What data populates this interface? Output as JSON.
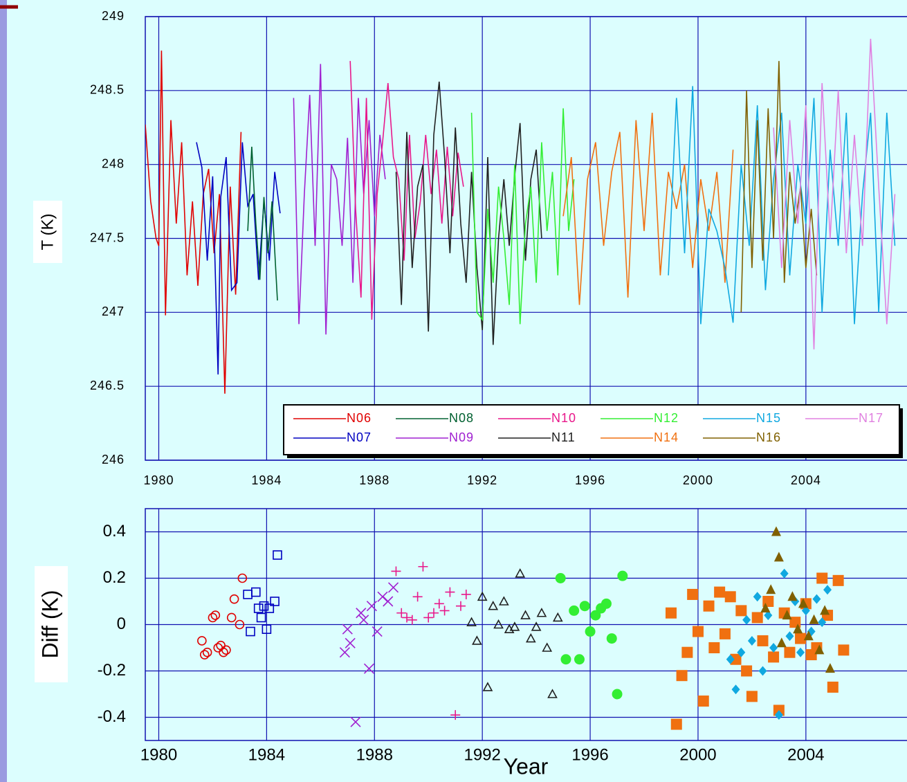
{
  "chart_data": [
    {
      "type": "line",
      "y_label": "T (K)",
      "xlim": [
        1979.5,
        2007.75
      ],
      "xticks": [
        1980,
        1984,
        1988,
        1992,
        1996,
        2000,
        2004
      ],
      "ylim": [
        246,
        249
      ],
      "yticks": [
        246,
        246.5,
        247,
        247.5,
        248,
        248.5,
        249
      ],
      "grid": true,
      "legend": "lower right",
      "series": [
        {
          "name": "N06",
          "color": "#e00000",
          "x": [
            1979.5,
            1979.7,
            1979.9,
            1980.0,
            1980.1,
            1980.25,
            1980.45,
            1980.65,
            1980.85,
            1981.05,
            1981.25,
            1981.45,
            1981.65,
            1981.85,
            1982.05,
            1982.25,
            1982.45,
            1982.65,
            1982.85,
            1983.05
          ],
          "values": [
            248.27,
            247.75,
            247.5,
            247.45,
            248.77,
            246.98,
            248.3,
            247.6,
            248.15,
            247.25,
            247.75,
            247.18,
            247.8,
            247.97,
            247.4,
            247.8,
            246.45,
            247.85,
            247.12,
            248.22
          ]
        },
        {
          "name": "N07",
          "color": "#0000c0",
          "x": [
            1981.4,
            1981.6,
            1981.8,
            1982.0,
            1982.1,
            1982.2,
            1982.3,
            1982.5,
            1982.7,
            1982.9,
            1983.1,
            1983.3,
            1983.5,
            1983.7,
            1983.9,
            1984.1,
            1984.3,
            1984.5
          ],
          "values": [
            248.15,
            247.98,
            247.35,
            247.92,
            247.25,
            246.58,
            247.78,
            248.05,
            247.15,
            247.2,
            248.15,
            247.72,
            247.8,
            247.22,
            247.75,
            247.35,
            247.95,
            247.67
          ]
        },
        {
          "name": "N08",
          "color": "#006030",
          "x": [
            1983.3,
            1983.45,
            1983.6,
            1983.75,
            1983.9,
            1984.05,
            1984.2,
            1984.4
          ],
          "values": [
            247.55,
            248.12,
            247.6,
            247.22,
            247.78,
            247.4,
            247.75,
            247.08
          ]
        },
        {
          "name": "N09",
          "color": "#a020d0",
          "x": [
            1985.0,
            1985.2,
            1985.4,
            1985.6,
            1985.8,
            1986.0,
            1986.2,
            1986.4,
            1986.6,
            1986.8,
            1987.0,
            1987.2,
            1987.4,
            1987.6,
            1987.8,
            1988.0,
            1988.2,
            1988.4
          ],
          "values": [
            248.45,
            246.92,
            247.8,
            248.47,
            247.45,
            248.68,
            246.85,
            248.0,
            247.9,
            247.45,
            248.18,
            247.2,
            248.45,
            247.8,
            248.3,
            247.65,
            248.2,
            247.9
          ]
        },
        {
          "name": "N10",
          "color": "#e8178a",
          "x": [
            1987.1,
            1987.3,
            1987.5,
            1987.7,
            1987.9,
            1988.1,
            1988.3,
            1988.5,
            1988.7,
            1988.9,
            1989.1,
            1989.3,
            1989.5,
            1989.7,
            1989.9,
            1990.1,
            1990.3,
            1990.5,
            1990.7,
            1990.9,
            1991.1,
            1991.3
          ],
          "values": [
            248.7,
            247.7,
            247.1,
            248.45,
            246.95,
            247.8,
            248.15,
            248.55,
            248.05,
            247.9,
            247.35,
            248.2,
            247.5,
            247.75,
            248.2,
            247.8,
            248.1,
            247.6,
            248.12,
            247.65,
            248.08,
            247.85
          ]
        },
        {
          "name": "N11",
          "color": "#202020",
          "x": [
            1988.8,
            1989.0,
            1989.2,
            1989.4,
            1989.6,
            1989.8,
            1990.0,
            1990.2,
            1990.4,
            1990.6,
            1990.8,
            1991.0,
            1991.2,
            1991.4,
            1991.6,
            1991.8,
            1992.0,
            1992.2,
            1992.4,
            1992.6,
            1992.8,
            1993.0,
            1993.2,
            1993.4,
            1993.6,
            1993.8,
            1994.0,
            1994.2
          ],
          "values": [
            247.95,
            247.05,
            248.22,
            247.3,
            247.85,
            248.0,
            246.87,
            248.2,
            248.56,
            248.05,
            247.4,
            248.25,
            247.6,
            247.2,
            247.95,
            247.3,
            246.88,
            248.05,
            246.78,
            247.5,
            247.9,
            247.45,
            247.92,
            248.28,
            247.35,
            247.9,
            248.1,
            247.5
          ]
        },
        {
          "name": "N12",
          "color": "#33ee33",
          "x": [
            1991.6,
            1991.8,
            1992.0,
            1992.2,
            1992.4,
            1992.6,
            1992.8,
            1993.0,
            1993.2,
            1993.4,
            1993.6,
            1993.8,
            1994.0,
            1994.2,
            1994.4,
            1994.6,
            1994.8,
            1995.0,
            1995.2,
            1995.4
          ],
          "values": [
            248.35,
            247.0,
            246.95,
            247.7,
            247.2,
            247.85,
            247.5,
            247.05,
            248.0,
            246.92,
            247.6,
            247.85,
            247.2,
            248.15,
            247.55,
            247.95,
            247.25,
            248.38,
            247.55,
            247.9
          ]
        },
        {
          "name": "N14",
          "color": "#f07010",
          "x": [
            1995.0,
            1995.3,
            1995.6,
            1995.9,
            1996.2,
            1996.5,
            1996.8,
            1997.1,
            1997.4,
            1997.7,
            1998.0,
            1998.3,
            1998.6,
            1998.9,
            1999.2,
            1999.5,
            1999.8,
            2000.1,
            2000.4,
            2000.7,
            2001.0,
            2001.3
          ],
          "values": [
            247.65,
            248.05,
            247.05,
            247.9,
            248.15,
            247.45,
            247.95,
            248.22,
            247.1,
            248.3,
            247.55,
            248.35,
            247.25,
            247.95,
            247.7,
            248.0,
            247.3,
            247.9,
            247.55,
            247.95,
            247.2,
            248.1
          ]
        },
        {
          "name": "N15",
          "color": "#10a8e0",
          "x": [
            1998.9,
            1999.2,
            1999.5,
            1999.8,
            2000.1,
            2000.4,
            2000.7,
            2001.0,
            2001.3,
            2001.6,
            2001.9,
            2002.2,
            2002.5,
            2002.8,
            2003.1,
            2003.4,
            2003.7,
            2004.0,
            2004.3,
            2004.6,
            2004.9,
            2005.2,
            2005.5,
            2005.8,
            2006.1,
            2006.4,
            2006.7,
            2007.0,
            2007.3
          ],
          "values": [
            247.25,
            248.45,
            247.4,
            248.53,
            246.92,
            247.7,
            247.55,
            247.3,
            246.93,
            248.0,
            247.45,
            248.4,
            247.15,
            247.9,
            248.35,
            247.25,
            248.0,
            247.6,
            248.45,
            247.0,
            248.1,
            247.45,
            248.35,
            246.92,
            247.8,
            248.35,
            247.0,
            248.35,
            247.45
          ]
        },
        {
          "name": "N16",
          "color": "#806000",
          "x": [
            2001.6,
            2001.8,
            2002.0,
            2002.2,
            2002.4,
            2002.6,
            2002.8,
            2003.0,
            2003.2,
            2003.4,
            2003.6,
            2003.8,
            2004.0,
            2004.2,
            2004.4
          ],
          "values": [
            247.0,
            248.5,
            247.3,
            248.3,
            247.35,
            248.38,
            247.5,
            248.7,
            247.2,
            247.95,
            247.6,
            247.85,
            247.3,
            247.7,
            247.25
          ]
        },
        {
          "name": "N17",
          "color": "#e080e0",
          "x": [
            2002.8,
            2003.1,
            2003.4,
            2003.7,
            2004.0,
            2004.3,
            2004.6,
            2004.9,
            2005.2,
            2005.5,
            2005.8,
            2006.1,
            2006.4,
            2006.7,
            2007.0,
            2007.3
          ],
          "values": [
            248.25,
            247.3,
            248.3,
            247.6,
            248.4,
            246.75,
            248.55,
            247.5,
            248.5,
            247.4,
            248.2,
            247.45,
            248.85,
            247.85,
            246.92,
            247.8
          ]
        }
      ]
    },
    {
      "type": "scatter",
      "y_label": "Diff (K)",
      "x_label": "Year",
      "xlim": [
        1979.5,
        2007.75
      ],
      "xticks": [
        1980,
        1984,
        1988,
        1992,
        1996,
        2000,
        2004
      ],
      "ylim": [
        -0.5,
        0.5
      ],
      "yticks": [
        -0.4,
        -0.2,
        0,
        0.2,
        0.4
      ],
      "grid": true,
      "series": [
        {
          "color": "#e00000",
          "marker": "circle-open",
          "x": [
            1981.6,
            1981.7,
            1981.8,
            1982.0,
            1982.1,
            1982.2,
            1982.3,
            1982.4,
            1982.5,
            1982.7,
            1982.8,
            1983.0,
            1983.1
          ],
          "values": [
            -0.07,
            -0.13,
            -0.12,
            0.03,
            0.04,
            -0.1,
            -0.09,
            -0.12,
            -0.11,
            0.03,
            0.11,
            0,
            0.2
          ]
        },
        {
          "color": "#0000c0",
          "marker": "square-open",
          "x": [
            1983.3,
            1983.4,
            1983.6,
            1983.7,
            1983.8,
            1983.9,
            1984.0,
            1984.1,
            1984.3,
            1984.4
          ],
          "values": [
            0.13,
            -0.03,
            0.14,
            0.07,
            0.03,
            0.08,
            -0.02,
            0.07,
            0.1,
            0.3
          ]
        },
        {
          "color": "#a020d0",
          "marker": "x",
          "x": [
            1986.9,
            1987.0,
            1987.1,
            1987.3,
            1987.5,
            1987.6,
            1987.8,
            1987.9,
            1988.1,
            1988.3,
            1988.5,
            1988.7
          ],
          "values": [
            -0.12,
            -0.02,
            -0.08,
            -0.42,
            0.05,
            0.02,
            -0.19,
            0.08,
            -0.03,
            0.12,
            0.1,
            0.16
          ]
        },
        {
          "color": "#e8178a",
          "marker": "plus",
          "x": [
            1988.8,
            1989.0,
            1989.2,
            1989.4,
            1989.6,
            1989.8,
            1990.0,
            1990.2,
            1990.4,
            1990.6,
            1990.8,
            1991.0,
            1991.2,
            1991.4
          ],
          "values": [
            0.23,
            0.05,
            0.03,
            0.02,
            0.12,
            0.25,
            0.03,
            0.05,
            0.09,
            0.06,
            0.14,
            -0.39,
            0.08,
            0.13
          ]
        },
        {
          "color": "#202020",
          "marker": "triangle-open",
          "x": [
            1991.6,
            1991.8,
            1992.0,
            1992.2,
            1992.4,
            1992.6,
            1992.8,
            1993.0,
            1993.2,
            1993.4,
            1993.6,
            1993.8,
            1994.0,
            1994.2,
            1994.4,
            1994.6,
            1994.8
          ],
          "values": [
            0.01,
            -0.07,
            0.12,
            -0.27,
            0.08,
            0,
            0.1,
            -0.02,
            -0.01,
            0.22,
            0.04,
            -0.06,
            -0.01,
            0.05,
            -0.1,
            -0.3,
            0.03
          ]
        },
        {
          "color": "#33ee33",
          "marker": "circle-filled",
          "x": [
            1994.9,
            1995.1,
            1995.4,
            1995.6,
            1995.8,
            1996.0,
            1996.2,
            1996.4,
            1996.6,
            1996.8,
            1997.0,
            1997.2
          ],
          "values": [
            0.2,
            -0.15,
            0.06,
            -0.15,
            0.08,
            -0.03,
            0.04,
            0.07,
            0.09,
            -0.06,
            -0.3,
            0.21
          ]
        },
        {
          "color": "#f07010",
          "marker": "square-filled",
          "x": [
            1999.0,
            1999.2,
            1999.4,
            1999.6,
            1999.8,
            2000.0,
            2000.2,
            2000.4,
            2000.6,
            2000.8,
            2001.0,
            2001.2,
            2001.4,
            2001.6,
            2001.8,
            2002.0,
            2002.2,
            2002.4,
            2002.6,
            2002.8,
            2003.0,
            2003.2,
            2003.4,
            2003.6,
            2003.8,
            2004.0,
            2004.2,
            2004.4,
            2004.6,
            2004.8,
            2005.0,
            2005.2,
            2005.4
          ],
          "values": [
            0.05,
            -0.43,
            -0.22,
            -0.12,
            0.13,
            -0.03,
            -0.33,
            0.08,
            -0.1,
            0.14,
            -0.04,
            0.12,
            -0.15,
            0.06,
            -0.2,
            -0.31,
            0.03,
            -0.07,
            0.1,
            -0.14,
            -0.37,
            0.05,
            -0.12,
            0.01,
            -0.06,
            0.09,
            -0.13,
            -0.1,
            0.2,
            0.04,
            -0.27,
            0.19,
            -0.11
          ]
        },
        {
          "color": "#10a8e0",
          "marker": "diamond-filled",
          "x": [
            2001.2,
            2001.4,
            2001.6,
            2001.8,
            2002.0,
            2002.2,
            2002.4,
            2002.6,
            2002.8,
            2003.0,
            2003.2,
            2003.4,
            2003.6,
            2003.8,
            2004.0,
            2004.2,
            2004.4,
            2004.6,
            2004.8
          ],
          "values": [
            -0.15,
            -0.28,
            -0.12,
            0.02,
            -0.07,
            0.12,
            -0.2,
            0.04,
            -0.1,
            -0.39,
            0.22,
            -0.05,
            0.1,
            -0.12,
            0.06,
            -0.03,
            0.11,
            0.01,
            0.15
          ]
        },
        {
          "color": "#806000",
          "marker": "triangle-filled",
          "x": [
            2002.5,
            2002.7,
            2002.9,
            2003.0,
            2003.1,
            2003.3,
            2003.5,
            2003.7,
            2003.9,
            2004.1,
            2004.3,
            2004.5,
            2004.7,
            2004.9
          ],
          "values": [
            0.07,
            0.15,
            0.4,
            0.29,
            -0.08,
            0.04,
            0.12,
            -0.02,
            0.09,
            -0.05,
            0.02,
            -0.11,
            0.06,
            -0.19
          ]
        }
      ]
    }
  ]
}
